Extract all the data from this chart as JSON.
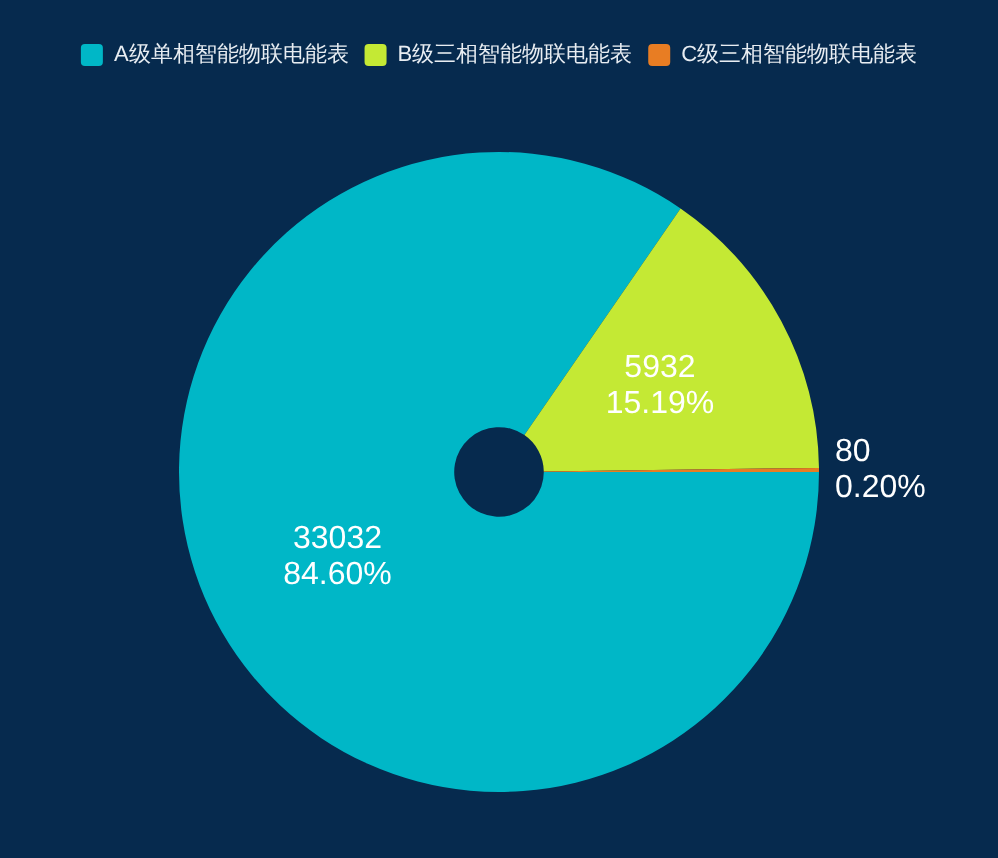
{
  "chart_data": {
    "type": "donut",
    "categories": [
      "A级单相智能物联电能表",
      "B级三相智能物联电能表",
      "C级三相智能物联电能表"
    ],
    "values": [
      33032,
      5932,
      80
    ],
    "colors": [
      "#00b7c7",
      "#c4e934",
      "#e87d23"
    ],
    "value_labels": [
      "33032\n84.60%",
      "5932\n15.19%",
      "80\n0.20%"
    ],
    "legend": "top"
  }
}
